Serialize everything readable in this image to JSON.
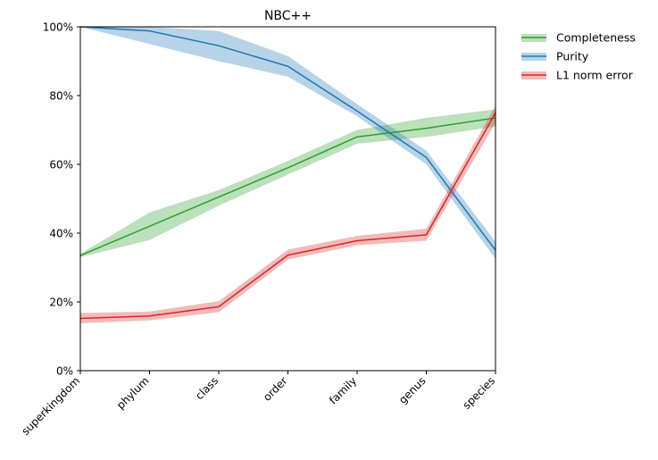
{
  "chart_data": {
    "type": "line",
    "title": "NBC++",
    "xlabel": "",
    "ylabel": "",
    "categories": [
      "superkingdom",
      "phylum",
      "class",
      "order",
      "family",
      "genus",
      "species"
    ],
    "y_ticks": [
      "0%",
      "20%",
      "40%",
      "60%",
      "80%",
      "100%"
    ],
    "ylim": [
      0,
      100
    ],
    "grid": false,
    "legend_position": "outside top-right",
    "series": [
      {
        "name": "Completeness",
        "color": "#2ca02c",
        "values": [
          33.5,
          42,
          50.5,
          59,
          68,
          70.5,
          73.5
        ],
        "lower": [
          33,
          38,
          48,
          57,
          66,
          68,
          71
        ],
        "upper": [
          34,
          46,
          52.5,
          61,
          70,
          73.5,
          76
        ]
      },
      {
        "name": "Purity",
        "color": "#1f77b4",
        "values": [
          100,
          98.8,
          94.5,
          88.5,
          75.5,
          62,
          35
        ],
        "lower": [
          100,
          95,
          90,
          85.5,
          74,
          60,
          32.5
        ],
        "upper": [
          100,
          100,
          98.8,
          91.5,
          77.5,
          64,
          37.5
        ]
      },
      {
        "name": "L1 norm error",
        "color": "#d62728",
        "values": [
          15.2,
          15.9,
          18.6,
          33.6,
          37.8,
          39.5,
          75
        ],
        "lower": [
          13.8,
          14.6,
          17,
          32.3,
          36.5,
          37.8,
          72
        ],
        "upper": [
          16.8,
          17.2,
          20.2,
          35.2,
          39.2,
          41.3,
          77
        ]
      }
    ]
  }
}
